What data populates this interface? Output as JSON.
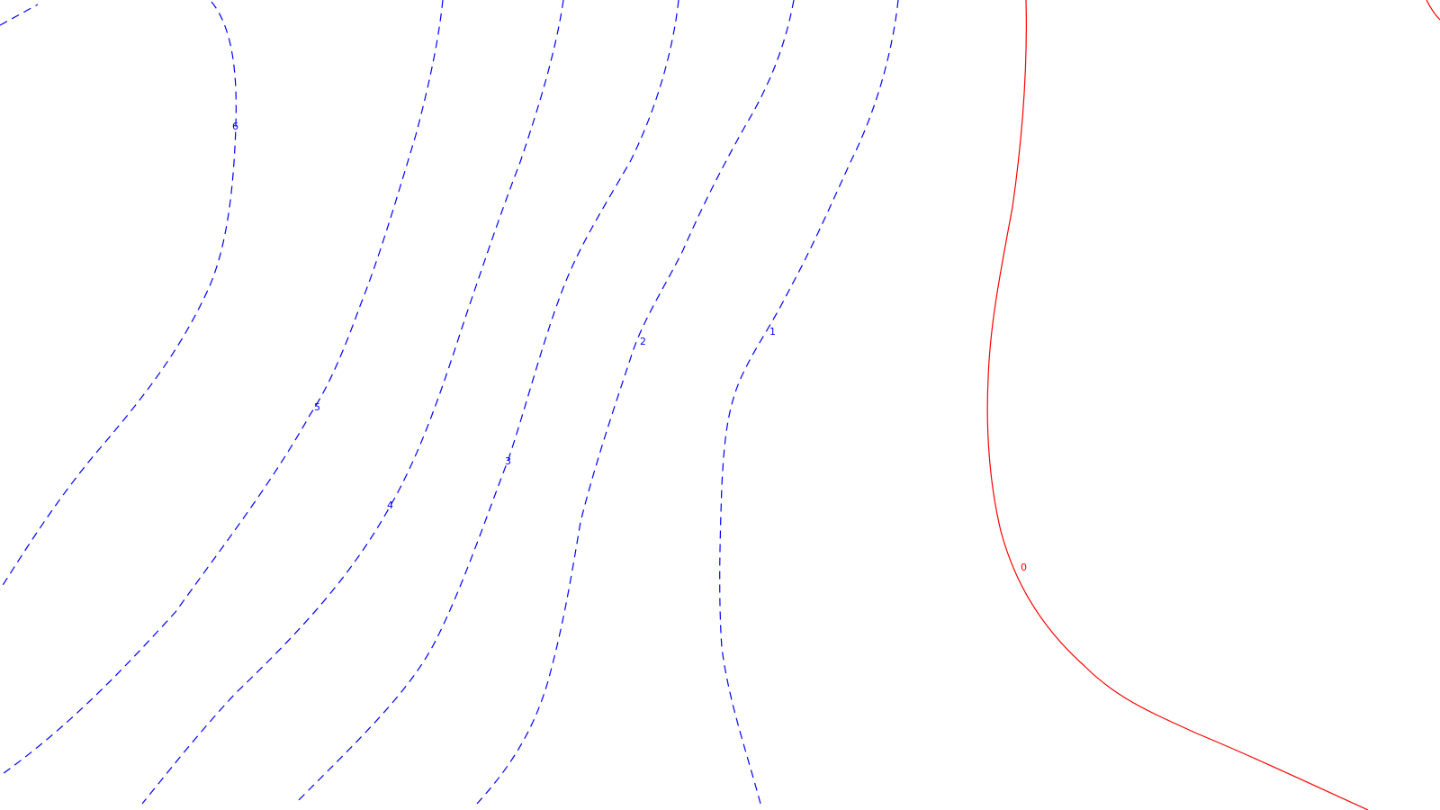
{
  "map": {
    "background_color": "#ffffff",
    "colors": {
      "negative_contour": "#0000ff",
      "zero_contour": "#ff0000"
    },
    "contours": [
      {
        "id": "contour-6",
        "value": "6",
        "style": "dashed",
        "color": "#0000ff"
      },
      {
        "id": "contour-5",
        "value": "5",
        "style": "dashed",
        "color": "#0000ff"
      },
      {
        "id": "contour-4",
        "value": "4",
        "style": "dashed",
        "color": "#0000ff"
      },
      {
        "id": "contour-3",
        "value": "3",
        "style": "dashed",
        "color": "#0000ff"
      },
      {
        "id": "contour-2",
        "value": "2",
        "style": "dashed",
        "color": "#0000ff"
      },
      {
        "id": "contour-1",
        "value": "1",
        "style": "dashed",
        "color": "#0000ff"
      },
      {
        "id": "contour-0",
        "value": "0",
        "style": "solid",
        "color": "#ff0000"
      }
    ]
  }
}
